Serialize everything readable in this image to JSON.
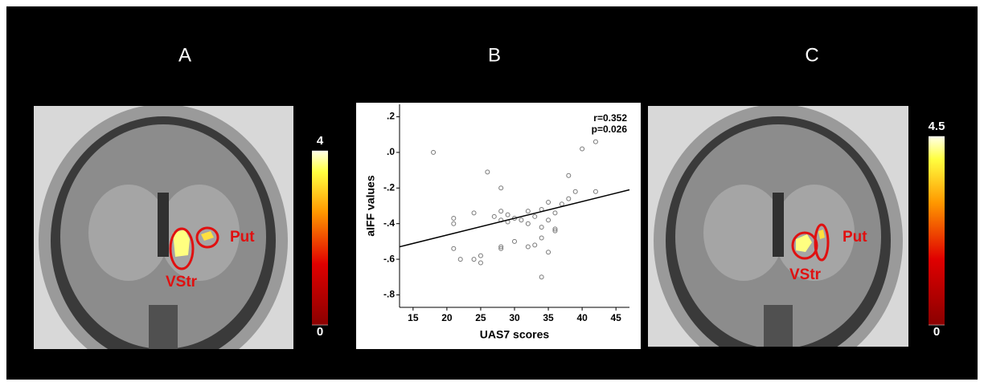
{
  "panels": [
    {
      "label": "A",
      "colorbar": {
        "ticks": [
          0,
          4
        ]
      },
      "annotations": [
        "Put",
        "VStr"
      ]
    },
    {
      "label": "B"
    },
    {
      "label": "C",
      "colorbar": {
        "ticks": [
          0,
          4.5
        ]
      },
      "annotations": [
        "Put",
        "VStr"
      ]
    }
  ],
  "chart_data": {
    "type": "scatter",
    "x": [
      18,
      26,
      21,
      21,
      24,
      21,
      22,
      24,
      25,
      25,
      27,
      28,
      28,
      28,
      29,
      29,
      30,
      28,
      28,
      30,
      31,
      32,
      32,
      33,
      32,
      33,
      34,
      34,
      34,
      35,
      35,
      36,
      36,
      36,
      35,
      37,
      38,
      38,
      39,
      40,
      42,
      42,
      34
    ],
    "values": [
      0.0,
      -0.11,
      -0.37,
      -0.4,
      -0.34,
      -0.54,
      -0.6,
      -0.6,
      -0.58,
      -0.62,
      -0.36,
      -0.2,
      -0.33,
      -0.38,
      -0.35,
      -0.39,
      -0.37,
      -0.53,
      -0.54,
      -0.5,
      -0.38,
      -0.33,
      -0.4,
      -0.36,
      -0.53,
      -0.52,
      -0.32,
      -0.42,
      -0.7,
      -0.28,
      -0.38,
      -0.34,
      -0.43,
      -0.44,
      -0.56,
      -0.29,
      -0.26,
      -0.13,
      -0.22,
      0.02,
      0.06,
      -0.22,
      -0.48
    ],
    "color": "#777777",
    "fit": {
      "x": [
        13,
        47
      ],
      "values": [
        -0.53,
        -0.21
      ]
    },
    "xlim": [
      13,
      47
    ],
    "ylim": [
      -0.87,
      0.27
    ],
    "xticks": [
      15,
      20,
      25,
      30,
      35,
      40,
      45
    ],
    "yticks": [
      {
        "value": 0.2,
        "label": ".2"
      },
      {
        "value": 0.0,
        "label": ".0"
      },
      {
        "value": -0.2,
        "label": "-.2"
      },
      {
        "value": -0.4,
        "label": "-.4"
      },
      {
        "value": -0.6,
        "label": "-.6"
      },
      {
        "value": -0.8,
        "label": "-.8"
      }
    ],
    "xlabel": "UAS7 scores",
    "ylabel": "aIFF values",
    "annotations": [
      "r=0.352",
      "p=0.026"
    ]
  }
}
